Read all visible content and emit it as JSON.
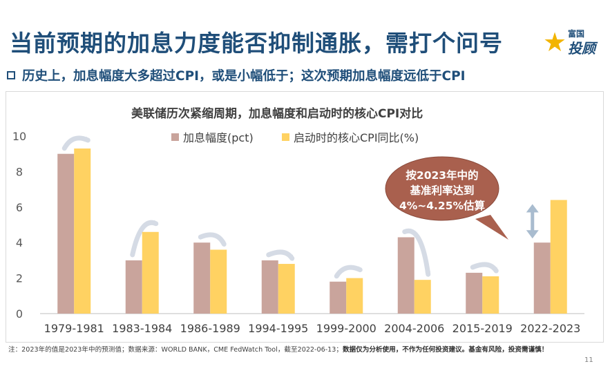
{
  "header": {
    "title": "当前预期的加息力度能否抑制通胀，需打个问号",
    "logo_top": "富国",
    "logo_bottom": "投顾",
    "subtitle": "历史上，加息幅度大多超过CPI，或是小幅低于；这次预期加息幅度远低于CPI"
  },
  "chart_data": {
    "type": "bar",
    "title": "美联储历次紧缩周期，加息幅度和启动时的核心CPI对比",
    "categories": [
      "1979-1981",
      "1983-1984",
      "1986-1989",
      "1994-1995",
      "1999-2000",
      "2004-2006",
      "2015-2019",
      "2022-2023"
    ],
    "series": [
      {
        "name": "加息幅度(pct)",
        "color": "#c9a49c",
        "values": [
          9.0,
          3.0,
          4.0,
          3.0,
          1.8,
          4.3,
          2.3,
          4.0
        ]
      },
      {
        "name": "启动时的核心CPI同比(%)",
        "color": "#ffd262",
        "values": [
          9.3,
          4.6,
          3.6,
          2.8,
          2.0,
          1.9,
          2.1,
          6.4
        ]
      }
    ],
    "ylim": [
      0,
      10
    ],
    "yticks": [
      "0",
      "2",
      "4",
      "6",
      "8",
      "10"
    ],
    "legend": "top",
    "grid": false,
    "annotation": [
      "按2023年中的",
      "基准利率达到",
      "4%~4.25%估算"
    ]
  },
  "footnote": {
    "text": "注：2023年的值是2023年中的预测值；数据来源：WORLD BANK，CME FedWatch Tool，截至2022-06-13；",
    "bold": "数据仅为分析使用，不作为任何投资建议。基金有风险，投资需谨慎！"
  },
  "page_number": "11"
}
